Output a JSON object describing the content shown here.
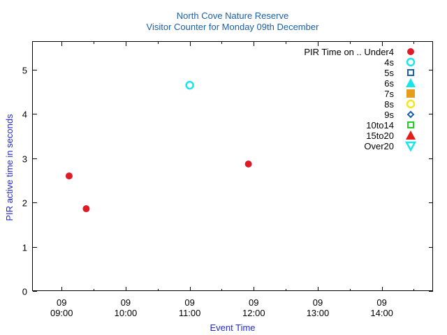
{
  "chart_data": {
    "type": "scatter",
    "title": "North Cove Nature Reserve",
    "subtitle": "Visitor Counter for Monday 09th December",
    "xlabel": "Event Time",
    "ylabel": "PIR active time in seconds",
    "x_range": [
      "08:33",
      "14:48"
    ],
    "ylim": [
      0,
      5.63
    ],
    "y_ticks": [
      0,
      1,
      2,
      3,
      4,
      5
    ],
    "x_ticks": [
      {
        "time": "09:00",
        "date": "09",
        "clock": "09:00"
      },
      {
        "time": "10:00",
        "date": "09",
        "clock": "10:00"
      },
      {
        "time": "11:00",
        "date": "09",
        "clock": "11:00"
      },
      {
        "time": "12:00",
        "date": "09",
        "clock": "12:00"
      },
      {
        "time": "13:00",
        "date": "09",
        "clock": "13:00"
      },
      {
        "time": "14:00",
        "date": "09",
        "clock": "14:00"
      }
    ],
    "grid": false,
    "legend_position": "top-right",
    "legend_title": "PIR Time on .. Under4",
    "series": [
      {
        "name": "Under4",
        "marker": "circle-filled",
        "color": "#dd1c28",
        "points": [
          {
            "x": "09:07",
            "y": 2.6
          },
          {
            "x": "09:23",
            "y": 1.86
          },
          {
            "x": "11:55",
            "y": 2.87
          }
        ]
      },
      {
        "name": "4s",
        "marker": "circle-open",
        "color": "#19e6ec",
        "points": [
          {
            "x": "11:00",
            "y": 4.65
          }
        ]
      },
      {
        "name": "5s",
        "marker": "square-open",
        "color": "#1a5fb4",
        "points": []
      },
      {
        "name": "6s",
        "marker": "triangle-up-filled",
        "color": "#19e6ec",
        "points": []
      },
      {
        "name": "7s",
        "marker": "square-filled",
        "color": "#e69c1c",
        "points": []
      },
      {
        "name": "8s",
        "marker": "circle-open",
        "color": "#f5e61c",
        "points": []
      },
      {
        "name": "9s",
        "marker": "diamond-open",
        "color": "#1a5fb4",
        "points": []
      },
      {
        "name": "10to14",
        "marker": "square-open",
        "color": "#1cd41c",
        "points": []
      },
      {
        "name": "15to20",
        "marker": "triangle-up-filled",
        "color": "#e61c1c",
        "points": []
      },
      {
        "name": "Over20",
        "marker": "triangle-down-open",
        "color": "#19e6ec",
        "points": []
      }
    ]
  }
}
